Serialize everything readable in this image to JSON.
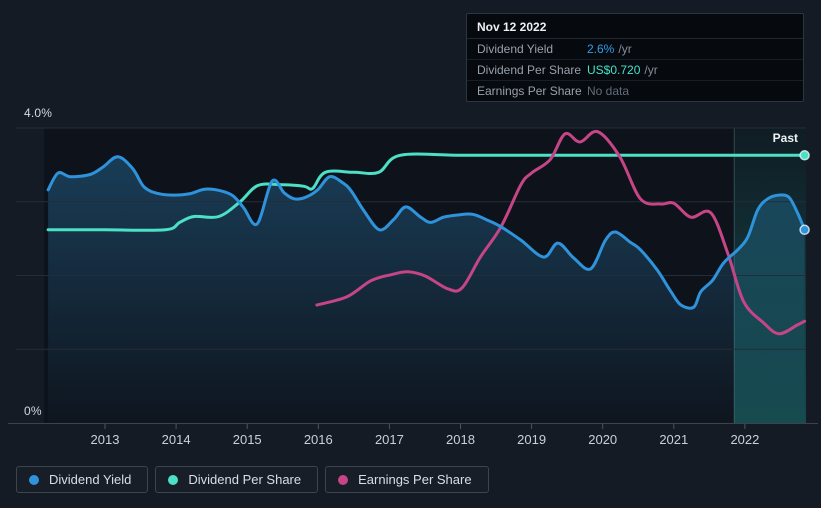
{
  "colors": {
    "page_bg": "#151b25",
    "plot_bg": "#0e131b",
    "grid": "#232c38",
    "axis_line": "#3a434e",
    "tick": "#4a5560",
    "tick_label": "#c9d0d8",
    "area_top": "rgba(46,140,200,0.38)",
    "area_bottom": "rgba(46,140,200,0.02)",
    "past_top": "rgba(40,200,195,0.05)",
    "past_bottom": "rgba(40,200,195,0.30)",
    "past_boundary": "rgba(150,222,226,0.25)"
  },
  "tooltip": {
    "date": "Nov 12 2022",
    "rows": [
      {
        "label": "Dividend Yield",
        "value": "2.6%",
        "suffix": "/yr",
        "value_color": "#2f9fe8"
      },
      {
        "label": "Dividend Per Share",
        "value": "US$0.720",
        "suffix": "/yr",
        "value_color": "#45e2c9"
      },
      {
        "label": "Earnings Per Share",
        "value": "No data",
        "suffix": "",
        "value_color": "#626d79"
      }
    ]
  },
  "chart_data": {
    "type": "line",
    "ylim": [
      0,
      4
    ],
    "x_range": [
      2012.2,
      2022.87
    ],
    "y_axis_labels": {
      "top": "4.0%",
      "bottom": "0%"
    },
    "x_ticks": [
      2013,
      2014,
      2015,
      2016,
      2017,
      2018,
      2019,
      2020,
      2021,
      2022
    ],
    "past_label": "Past",
    "past_start": 2021.85,
    "grid": true,
    "legend_position": "bottom-left",
    "series": [
      {
        "name": "Dividend Yield",
        "id": "dividend-yield",
        "color": "#2e93da",
        "area": true,
        "end_dot": true,
        "points": [
          [
            2012.2,
            3.16
          ],
          [
            2012.34,
            3.39
          ],
          [
            2012.51,
            3.34
          ],
          [
            2012.79,
            3.37
          ],
          [
            2012.97,
            3.47
          ],
          [
            2013.18,
            3.61
          ],
          [
            2013.39,
            3.45
          ],
          [
            2013.55,
            3.2
          ],
          [
            2013.75,
            3.11
          ],
          [
            2013.97,
            3.09
          ],
          [
            2014.2,
            3.11
          ],
          [
            2014.4,
            3.17
          ],
          [
            2014.62,
            3.15
          ],
          [
            2014.8,
            3.08
          ],
          [
            2014.95,
            2.92
          ],
          [
            2015.14,
            2.7
          ],
          [
            2015.35,
            3.28
          ],
          [
            2015.52,
            3.12
          ],
          [
            2015.66,
            3.04
          ],
          [
            2015.82,
            3.06
          ],
          [
            2015.99,
            3.16
          ],
          [
            2016.16,
            3.34
          ],
          [
            2016.34,
            3.26
          ],
          [
            2016.46,
            3.15
          ],
          [
            2016.64,
            2.88
          ],
          [
            2016.86,
            2.62
          ],
          [
            2017.06,
            2.76
          ],
          [
            2017.23,
            2.93
          ],
          [
            2017.44,
            2.79
          ],
          [
            2017.58,
            2.72
          ],
          [
            2017.76,
            2.79
          ],
          [
            2017.96,
            2.82
          ],
          [
            2018.17,
            2.83
          ],
          [
            2018.38,
            2.75
          ],
          [
            2018.57,
            2.66
          ],
          [
            2018.85,
            2.48
          ],
          [
            2019.17,
            2.25
          ],
          [
            2019.37,
            2.44
          ],
          [
            2019.59,
            2.24
          ],
          [
            2019.83,
            2.09
          ],
          [
            2020.04,
            2.48
          ],
          [
            2020.18,
            2.59
          ],
          [
            2020.39,
            2.45
          ],
          [
            2020.53,
            2.35
          ],
          [
            2020.77,
            2.07
          ],
          [
            2020.96,
            1.78
          ],
          [
            2021.1,
            1.6
          ],
          [
            2021.28,
            1.57
          ],
          [
            2021.38,
            1.78
          ],
          [
            2021.55,
            1.94
          ],
          [
            2021.7,
            2.17
          ],
          [
            2021.9,
            2.35
          ],
          [
            2022.04,
            2.52
          ],
          [
            2022.18,
            2.89
          ],
          [
            2022.32,
            3.04
          ],
          [
            2022.48,
            3.09
          ],
          [
            2022.62,
            3.06
          ],
          [
            2022.74,
            2.85
          ],
          [
            2022.84,
            2.62
          ]
        ]
      },
      {
        "name": "Dividend Per Share",
        "id": "dividend-per-share",
        "color": "#4ce0c6",
        "area": false,
        "end_dot": true,
        "points": [
          [
            2012.2,
            2.62
          ],
          [
            2013,
            2.62
          ],
          [
            2013.85,
            2.62
          ],
          [
            2014.05,
            2.72
          ],
          [
            2014.25,
            2.8
          ],
          [
            2014.6,
            2.8
          ],
          [
            2014.9,
            3.0
          ],
          [
            2015.15,
            3.22
          ],
          [
            2015.5,
            3.23
          ],
          [
            2015.8,
            3.21
          ],
          [
            2015.92,
            3.18
          ],
          [
            2016.1,
            3.4
          ],
          [
            2016.5,
            3.4
          ],
          [
            2016.85,
            3.4
          ],
          [
            2017.15,
            3.63
          ],
          [
            2018,
            3.63
          ],
          [
            2019,
            3.63
          ],
          [
            2020,
            3.63
          ],
          [
            2021,
            3.63
          ],
          [
            2022,
            3.63
          ],
          [
            2022.84,
            3.63
          ]
        ]
      },
      {
        "name": "Earnings Per Share",
        "id": "earnings-per-share",
        "color": "#c64587",
        "area": false,
        "end_dot": false,
        "points": [
          [
            2015.98,
            1.6
          ],
          [
            2016.4,
            1.71
          ],
          [
            2016.74,
            1.93
          ],
          [
            2017.02,
            2.01
          ],
          [
            2017.26,
            2.05
          ],
          [
            2017.51,
            1.99
          ],
          [
            2017.82,
            1.82
          ],
          [
            2018.02,
            1.83
          ],
          [
            2018.28,
            2.25
          ],
          [
            2018.57,
            2.66
          ],
          [
            2018.85,
            3.23
          ],
          [
            2019,
            3.39
          ],
          [
            2019.26,
            3.57
          ],
          [
            2019.47,
            3.92
          ],
          [
            2019.68,
            3.81
          ],
          [
            2019.93,
            3.95
          ],
          [
            2020.24,
            3.61
          ],
          [
            2020.53,
            3.04
          ],
          [
            2020.82,
            2.97
          ],
          [
            2021,
            2.98
          ],
          [
            2021.24,
            2.79
          ],
          [
            2021.52,
            2.85
          ],
          [
            2021.76,
            2.3
          ],
          [
            2021.98,
            1.65
          ],
          [
            2022.26,
            1.36
          ],
          [
            2022.48,
            1.21
          ],
          [
            2022.74,
            1.33
          ],
          [
            2022.84,
            1.38
          ]
        ]
      }
    ]
  },
  "legend": {
    "items": [
      {
        "label": "Dividend Yield",
        "color": "#2e93da"
      },
      {
        "label": "Dividend Per Share",
        "color": "#4ce0c6"
      },
      {
        "label": "Earnings Per Share",
        "color": "#c64587"
      }
    ]
  }
}
